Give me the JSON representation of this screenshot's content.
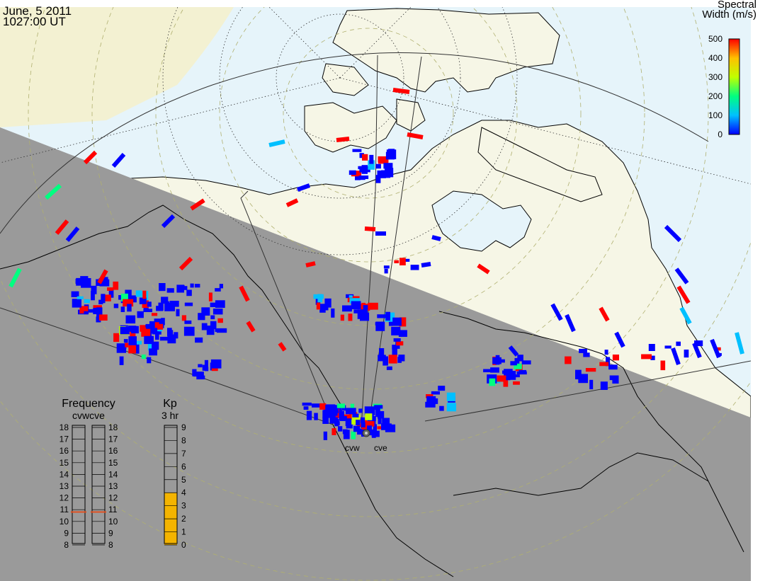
{
  "header": {
    "date": "June, 5 2011",
    "time": "1027:00 UT"
  },
  "colorbar": {
    "title_line1": "Spectral",
    "title_line2": "Width (m/s)",
    "ticks": [
      "500",
      "400",
      "300",
      "200",
      "100",
      "0"
    ],
    "min": 0,
    "max": 500,
    "colors": [
      "#0000ff",
      "#00c0ff",
      "#00ff80",
      "#c0ff00",
      "#ffc000",
      "#ff0000"
    ]
  },
  "radars": {
    "west": "cvw",
    "east": "cve"
  },
  "frequency_panel": {
    "title": "Frequency",
    "subtitle": "cvwcve",
    "ticks": [
      "18",
      "17",
      "16",
      "15",
      "14",
      "13",
      "12",
      "11",
      "10",
      "9",
      "8"
    ],
    "min": 8,
    "max": 18,
    "cvw_mhz": 10.8,
    "cve_mhz": 10.8,
    "marker_color": "#e05020"
  },
  "kp_panel": {
    "title": "Kp",
    "subtitle": "3 hr",
    "ticks": [
      "9",
      "8",
      "7",
      "6",
      "5",
      "4",
      "3",
      "2",
      "1",
      "0"
    ],
    "min": 0,
    "max": 9,
    "value": 4,
    "fill_color": "#f4b400"
  },
  "colors": {
    "night": "#9a9a9a",
    "day_ocean": "#e6f4fa",
    "day_land": "#f6f6e6",
    "dusk_land": "#f3f1d2",
    "coastline": "#000000"
  }
}
